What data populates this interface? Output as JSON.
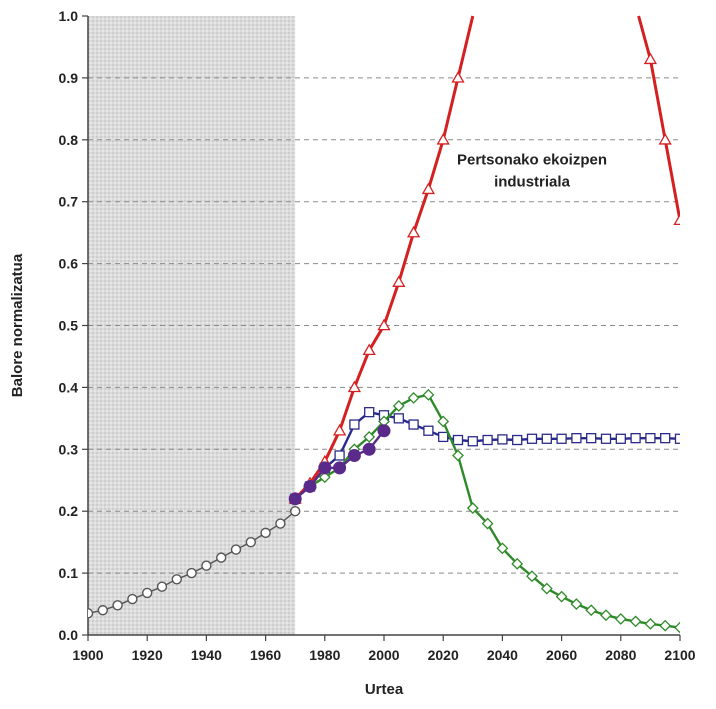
{
  "chart_data": {
    "type": "line",
    "xlabel": "Urtea",
    "ylabel": "Balore normalizatua",
    "xlim": [
      1900,
      2100
    ],
    "ylim": [
      0,
      1.0
    ],
    "xticks": [
      "1900",
      "1920",
      "1940",
      "1960",
      "1980",
      "2000",
      "2020",
      "2040",
      "2060",
      "2080",
      "2100"
    ],
    "yticks": [
      "0.0",
      "0.1",
      "0.2",
      "0.3",
      "0.4",
      "0.5",
      "0.6",
      "0.7",
      "0.8",
      "0.9",
      "1.0"
    ],
    "shaded_region": [
      1900,
      1970
    ],
    "grid": "horizontal dashed",
    "annotation": {
      "lines": [
        "Pertsonako ekoizpen",
        "industriala"
      ],
      "x": 2050,
      "y": 0.76
    },
    "series": [
      {
        "marker": "circle-open",
        "color": "#555555",
        "points": [
          [
            1900,
            0.035
          ],
          [
            1905,
            0.04
          ],
          [
            1910,
            0.048
          ],
          [
            1915,
            0.058
          ],
          [
            1920,
            0.068
          ],
          [
            1925,
            0.078
          ],
          [
            1930,
            0.09
          ],
          [
            1935,
            0.1
          ],
          [
            1940,
            0.112
          ],
          [
            1945,
            0.125
          ],
          [
            1950,
            0.138
          ],
          [
            1955,
            0.15
          ],
          [
            1960,
            0.165
          ],
          [
            1965,
            0.18
          ],
          [
            1970,
            0.2
          ]
        ]
      },
      {
        "marker": "triangle-open",
        "color": "#d42020",
        "points": [
          [
            1970,
            0.22
          ],
          [
            1975,
            0.245
          ],
          [
            1980,
            0.28
          ],
          [
            1985,
            0.33
          ],
          [
            1990,
            0.4
          ],
          [
            1995,
            0.46
          ],
          [
            2000,
            0.5
          ],
          [
            2005,
            0.57
          ],
          [
            2010,
            0.65
          ],
          [
            2015,
            0.72
          ],
          [
            2020,
            0.8
          ],
          [
            2025,
            0.9
          ],
          [
            2030,
            1.0
          ],
          [
            2086,
            1.0
          ],
          [
            2090,
            0.93
          ],
          [
            2095,
            0.8
          ],
          [
            2100,
            0.67
          ]
        ]
      },
      {
        "marker": "square-open",
        "color": "#2a2a8a",
        "points": [
          [
            1970,
            0.22
          ],
          [
            1975,
            0.24
          ],
          [
            1980,
            0.27
          ],
          [
            1985,
            0.29
          ],
          [
            1990,
            0.34
          ],
          [
            1995,
            0.36
          ],
          [
            2000,
            0.355
          ],
          [
            2005,
            0.35
          ],
          [
            2010,
            0.34
          ],
          [
            2015,
            0.33
          ],
          [
            2020,
            0.32
          ],
          [
            2025,
            0.315
          ],
          [
            2030,
            0.313
          ],
          [
            2035,
            0.315
          ],
          [
            2040,
            0.316
          ],
          [
            2045,
            0.315
          ],
          [
            2050,
            0.317
          ],
          [
            2055,
            0.317
          ],
          [
            2060,
            0.317
          ],
          [
            2065,
            0.318
          ],
          [
            2070,
            0.318
          ],
          [
            2075,
            0.317
          ],
          [
            2080,
            0.317
          ],
          [
            2085,
            0.318
          ],
          [
            2090,
            0.318
          ],
          [
            2095,
            0.318
          ],
          [
            2100,
            0.317
          ]
        ]
      },
      {
        "marker": "diamond-open",
        "color": "#2f8a2a",
        "points": [
          [
            1970,
            0.22
          ],
          [
            1975,
            0.24
          ],
          [
            1980,
            0.255
          ],
          [
            1985,
            0.27
          ],
          [
            1990,
            0.3
          ],
          [
            1995,
            0.32
          ],
          [
            2000,
            0.345
          ],
          [
            2005,
            0.37
          ],
          [
            2010,
            0.383
          ],
          [
            2015,
            0.388
          ],
          [
            2020,
            0.345
          ],
          [
            2025,
            0.29
          ],
          [
            2030,
            0.205
          ],
          [
            2035,
            0.18
          ],
          [
            2040,
            0.14
          ],
          [
            2045,
            0.115
          ],
          [
            2050,
            0.095
          ],
          [
            2055,
            0.075
          ],
          [
            2060,
            0.062
          ],
          [
            2065,
            0.05
          ],
          [
            2070,
            0.04
          ],
          [
            2075,
            0.032
          ],
          [
            2080,
            0.026
          ],
          [
            2085,
            0.022
          ],
          [
            2090,
            0.018
          ],
          [
            2095,
            0.015
          ],
          [
            2100,
            0.012
          ]
        ]
      },
      {
        "marker": "circle-filled",
        "color": "#5a2a8a",
        "points": [
          [
            1970,
            0.22
          ],
          [
            1975,
            0.24
          ],
          [
            1980,
            0.27
          ],
          [
            1985,
            0.27
          ],
          [
            1990,
            0.29
          ],
          [
            1995,
            0.3
          ],
          [
            2000,
            0.33
          ]
        ]
      }
    ]
  }
}
